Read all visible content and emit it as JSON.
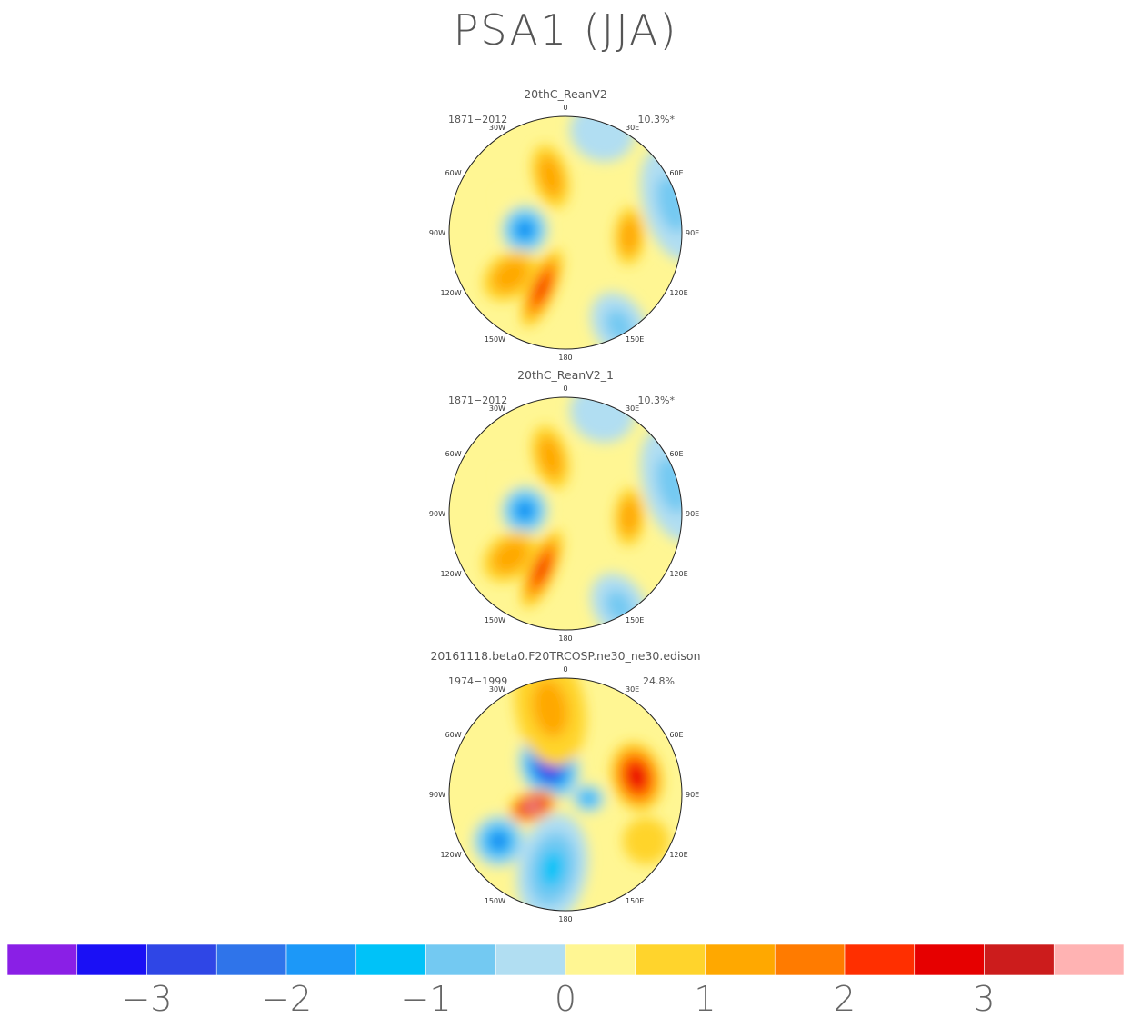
{
  "figure_title": "PSA1 (JJA)",
  "chart_data": [
    {
      "type": "heatmap",
      "projection": "south-polar-stereographic",
      "title": "20thC_ReanV2",
      "period": "1871-2012",
      "variance": "10.3%*",
      "lon_labels": [
        "0",
        "30E",
        "60E",
        "90E",
        "120E",
        "150E",
        "180",
        "150W",
        "120W",
        "90W",
        "60W",
        "30W"
      ],
      "lon_label_angles": [
        0,
        30,
        60,
        90,
        120,
        150,
        180,
        210,
        240,
        270,
        300,
        330
      ],
      "anomalies": [
        {
          "lon": 345,
          "r": 0.5,
          "rx": 0.28,
          "ry": 0.15,
          "value": 1.2
        },
        {
          "lon": 300,
          "r": 0.6,
          "rx": 0.05,
          "ry": 0.05,
          "value": 0.2
        },
        {
          "lon": 274,
          "r": 0.35,
          "rx": 0.2,
          "ry": 0.21,
          "value": -2.5
        },
        {
          "lon": 93,
          "r": 0.55,
          "rx": 0.13,
          "ry": 0.25,
          "value": 1.4
        },
        {
          "lon": 203,
          "r": 0.52,
          "rx": 0.36,
          "ry": 0.12,
          "value": 2.5
        },
        {
          "lon": 232,
          "r": 0.6,
          "rx": 0.26,
          "ry": 0.19,
          "value": 1.3
        },
        {
          "lon": 75,
          "r": 0.95,
          "rx": 0.25,
          "ry": 0.5,
          "value": -0.6
        },
        {
          "lon": 150,
          "r": 0.92,
          "rx": 0.3,
          "ry": 0.22,
          "value": -0.6
        },
        {
          "lon": 20,
          "r": 0.92,
          "rx": 0.25,
          "ry": 0.28,
          "value": -0.5
        }
      ]
    },
    {
      "type": "heatmap",
      "projection": "south-polar-stereographic",
      "title": "20thC_ReanV2_1",
      "period": "1871-2012",
      "variance": "10.3%*",
      "lon_labels": [
        "0",
        "30E",
        "60E",
        "90E",
        "120E",
        "150E",
        "180",
        "150W",
        "120W",
        "90W",
        "60W",
        "30W"
      ],
      "lon_label_angles": [
        0,
        30,
        60,
        90,
        120,
        150,
        180,
        210,
        240,
        270,
        300,
        330
      ],
      "anomalies": [
        {
          "lon": 345,
          "r": 0.5,
          "rx": 0.28,
          "ry": 0.15,
          "value": 1.2
        },
        {
          "lon": 300,
          "r": 0.6,
          "rx": 0.05,
          "ry": 0.05,
          "value": 0.2
        },
        {
          "lon": 274,
          "r": 0.35,
          "rx": 0.2,
          "ry": 0.21,
          "value": -2.5
        },
        {
          "lon": 93,
          "r": 0.55,
          "rx": 0.13,
          "ry": 0.25,
          "value": 1.4
        },
        {
          "lon": 203,
          "r": 0.52,
          "rx": 0.36,
          "ry": 0.12,
          "value": 2.5
        },
        {
          "lon": 232,
          "r": 0.6,
          "rx": 0.26,
          "ry": 0.19,
          "value": 1.3
        },
        {
          "lon": 75,
          "r": 0.95,
          "rx": 0.25,
          "ry": 0.5,
          "value": -0.6
        },
        {
          "lon": 150,
          "r": 0.92,
          "rx": 0.3,
          "ry": 0.22,
          "value": -0.6
        },
        {
          "lon": 20,
          "r": 0.92,
          "rx": 0.25,
          "ry": 0.28,
          "value": -0.5
        }
      ]
    },
    {
      "type": "heatmap",
      "projection": "south-polar-stereographic",
      "title": "20161118.beta0.F20TRCOSP.ne30_ne30.edison",
      "period": "1974-1999",
      "variance": "24.8%",
      "lon_labels": [
        "0",
        "30E",
        "60E",
        "90E",
        "120E",
        "150E",
        "180",
        "150W",
        "120W",
        "90W",
        "60W",
        "30W"
      ],
      "lon_label_angles": [
        0,
        30,
        60,
        90,
        120,
        150,
        180,
        210,
        240,
        270,
        300,
        330
      ],
      "anomalies": [
        {
          "lon": 330,
          "r": 0.28,
          "rx": 0.3,
          "ry": 0.25,
          "value": -3.6
        },
        {
          "lon": 250,
          "r": 0.3,
          "rx": 0.22,
          "ry": 0.13,
          "value": 3.8
        },
        {
          "lon": 76,
          "r": 0.63,
          "rx": 0.22,
          "ry": 0.3,
          "value": 2.9
        },
        {
          "lon": 235,
          "r": 0.7,
          "rx": 0.22,
          "ry": 0.22,
          "value": -2.2
        },
        {
          "lon": 190,
          "r": 0.65,
          "rx": 0.48,
          "ry": 0.3,
          "value": -1.3
        },
        {
          "lon": 350,
          "r": 0.75,
          "rx": 0.5,
          "ry": 0.3,
          "value": 1.0
        },
        {
          "lon": 120,
          "r": 0.8,
          "rx": 0.2,
          "ry": 0.2,
          "value": 0.8
        },
        {
          "lon": 100,
          "r": 0.2,
          "rx": 0.14,
          "ry": 0.12,
          "value": -1.6
        }
      ]
    }
  ],
  "colorbar": {
    "levels": [
      -3.5,
      -3,
      -2.5,
      -2,
      -1.5,
      -1,
      -0.5,
      0,
      0.5,
      1,
      1.5,
      2,
      2.5,
      3,
      3.5
    ],
    "colors": [
      "#8a1fe6",
      "#1a10f5",
      "#2f46e6",
      "#2f74ea",
      "#1c98f8",
      "#00c2f8",
      "#73c9f2",
      "#b1def2",
      "#fff693",
      "#ffd42c",
      "#ffa800",
      "#ff7b00",
      "#ff2f00",
      "#e60000",
      "#cc1c1c",
      "#ffb3b3"
    ],
    "tick_labels": [
      "-3",
      "-2",
      "-1",
      "0",
      "1",
      "2",
      "3"
    ],
    "tick_values": [
      -3,
      -2,
      -1,
      0,
      1,
      2,
      3
    ]
  },
  "colors": {
    "coast": "#666666",
    "text": "#333333",
    "label": "#555555"
  }
}
